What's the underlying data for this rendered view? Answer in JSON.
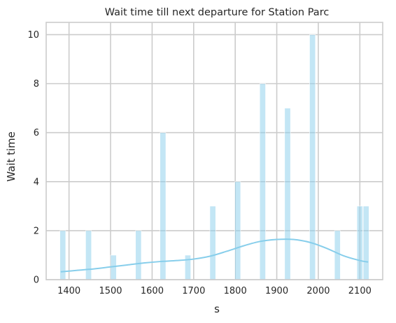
{
  "chart_data": {
    "type": "bar",
    "title": "Wait time till next departure for Station Parc",
    "xlabel": "s",
    "ylabel": "Wait time",
    "xlim": [
      1345,
      2155
    ],
    "ylim": [
      0,
      10.5
    ],
    "grid": true,
    "x_ticks": [
      1400,
      1500,
      1600,
      1700,
      1800,
      1900,
      2000,
      2100
    ],
    "y_ticks": [
      0,
      2,
      4,
      6,
      8,
      10
    ],
    "bin_width": 14,
    "bars": [
      {
        "x": 1385,
        "value": 2
      },
      {
        "x": 1447,
        "value": 2
      },
      {
        "x": 1507,
        "value": 1
      },
      {
        "x": 1567,
        "value": 2
      },
      {
        "x": 1626,
        "value": 6
      },
      {
        "x": 1686,
        "value": 1
      },
      {
        "x": 1746,
        "value": 3
      },
      {
        "x": 1806,
        "value": 4
      },
      {
        "x": 1866,
        "value": 8
      },
      {
        "x": 1926,
        "value": 7
      },
      {
        "x": 1986,
        "value": 10
      },
      {
        "x": 2046,
        "value": 2
      },
      {
        "x": 2100,
        "value": 3
      },
      {
        "x": 2115,
        "value": 3
      }
    ],
    "kde": {
      "x": [
        1380,
        1420,
        1460,
        1500,
        1540,
        1580,
        1620,
        1660,
        1700,
        1740,
        1780,
        1820,
        1860,
        1900,
        1940,
        1980,
        2020,
        2060,
        2100,
        2120
      ],
      "y": [
        0.32,
        0.38,
        0.44,
        0.52,
        0.6,
        0.68,
        0.74,
        0.78,
        0.84,
        0.96,
        1.16,
        1.38,
        1.56,
        1.64,
        1.64,
        1.52,
        1.28,
        0.98,
        0.78,
        0.72
      ]
    },
    "colors": {
      "bar": "#87ceeb",
      "kde": "#87ceeb",
      "grid": "#cccccc",
      "text": "#262626"
    }
  }
}
